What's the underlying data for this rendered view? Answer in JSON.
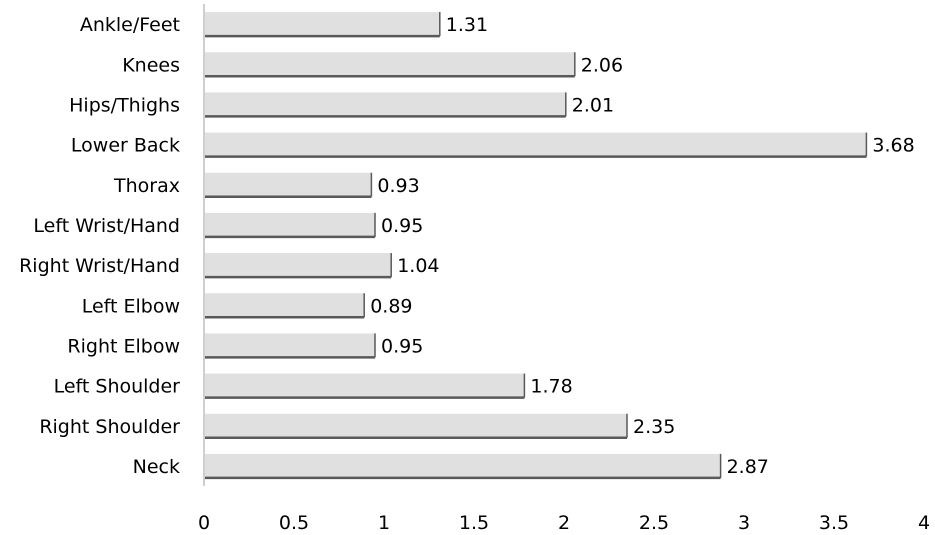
{
  "chart_data": {
    "type": "bar",
    "orientation": "horizontal",
    "categories": [
      "Ankle/Feet",
      "Knees",
      "Hips/Thighs",
      "Lower Back",
      "Thorax",
      "Left Wrist/Hand",
      "Right Wrist/Hand",
      "Left Elbow",
      "Right Elbow",
      "Left Shoulder",
      "Right Shoulder",
      "Neck"
    ],
    "values": [
      1.31,
      2.06,
      2.01,
      3.68,
      0.93,
      0.95,
      1.04,
      0.89,
      0.95,
      1.78,
      2.35,
      2.87
    ],
    "value_labels": [
      "1.31",
      "2.06",
      "2.01",
      "3.68",
      "0.93",
      "0.95",
      "1.04",
      "0.89",
      "0.95",
      "1.78",
      "2.35",
      "2.87"
    ],
    "x_ticks": [
      "0",
      "0.5",
      "1",
      "1.5",
      "2",
      "2.5",
      "3",
      "3.5",
      "4"
    ],
    "xlim": [
      0,
      4
    ],
    "grid": false,
    "legend": "none",
    "colors": {
      "bar_fill": "#e0e0e0",
      "bar_bottom": "#595959",
      "axis": "#bfbfbf"
    }
  }
}
